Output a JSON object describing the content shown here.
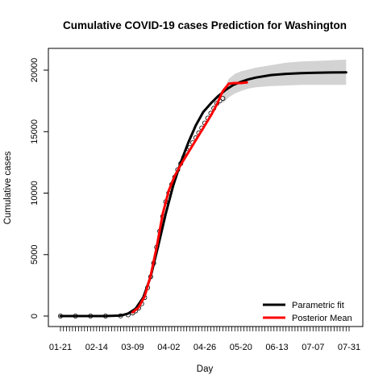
{
  "chart_data": {
    "type": "line",
    "title": "Cumulative COVID-19 cases Prediction for Washington",
    "xlabel": "Day",
    "ylabel": "Cumulative cases",
    "x_tick_labels": [
      "01-21",
      "02-14",
      "03-09",
      "04-02",
      "04-26",
      "05-20",
      "06-13",
      "07-07",
      "07-31"
    ],
    "y_ticks": [
      0,
      5000,
      10000,
      15000,
      20000
    ],
    "x_range_days": [
      0,
      192
    ],
    "ylim": [
      -1000,
      21000
    ],
    "legend": {
      "position": "bottom-right",
      "entries": [
        {
          "label": "Parametric fit",
          "color": "#000000"
        },
        {
          "label": "Posterior Mean",
          "color": "#ff0000"
        }
      ]
    },
    "observed_points": {
      "marker": "open-circle",
      "day_range": [
        0,
        108
      ],
      "x": [
        0,
        10,
        20,
        30,
        40,
        45,
        48,
        50,
        52,
        54,
        56,
        58,
        60,
        62,
        64,
        66,
        68,
        70,
        72,
        74,
        76,
        78,
        80,
        82,
        84,
        86,
        88,
        90,
        92,
        94,
        96,
        98,
        100,
        102,
        104,
        106,
        108
      ],
      "y": [
        0,
        0,
        0,
        0,
        10,
        100,
        250,
        420,
        650,
        1000,
        1500,
        2300,
        3200,
        4300,
        5600,
        6900,
        8100,
        9300,
        10000,
        10700,
        11300,
        11900,
        12400,
        12900,
        13300,
        13700,
        14100,
        14500,
        14900,
        15300,
        15700,
        16100,
        16500,
        16900,
        17300,
        17500,
        17700
      ]
    },
    "series": [
      {
        "name": "Parametric fit",
        "color": "#000000",
        "x": [
          0,
          30,
          40,
          45,
          50,
          55,
          60,
          65,
          70,
          75,
          80,
          85,
          90,
          95,
          100,
          105,
          110,
          115,
          120,
          125,
          130,
          140,
          150,
          160,
          170,
          180,
          190
        ],
        "y": [
          0,
          0,
          40,
          200,
          600,
          1500,
          3200,
          5700,
          8300,
          10600,
          12500,
          14100,
          15500,
          16600,
          17300,
          17900,
          18400,
          18800,
          19050,
          19250,
          19400,
          19600,
          19700,
          19760,
          19790,
          19810,
          19820
        ]
      },
      {
        "name": "Posterior Mean",
        "color": "#ff0000",
        "x": [
          48,
          52,
          56,
          60,
          64,
          68,
          72,
          76,
          80,
          84,
          88,
          92,
          96,
          100,
          104,
          108,
          112,
          116,
          120,
          124
        ],
        "y": [
          300,
          700,
          1600,
          3300,
          5600,
          8300,
          10200,
          11400,
          12300,
          13100,
          13900,
          14700,
          15500,
          16300,
          17200,
          18300,
          18900,
          18950,
          18950,
          19000
        ]
      }
    ],
    "confidence_band": {
      "color": "#d3d3d3",
      "x": [
        108,
        112,
        116,
        120,
        125,
        130,
        140,
        150,
        160,
        170,
        180,
        190
      ],
      "lower": [
        17300,
        17800,
        18100,
        18300,
        18500,
        18600,
        18700,
        18750,
        18800,
        18800,
        18800,
        18800
      ],
      "upper": [
        18200,
        19300,
        19700,
        19900,
        20050,
        20200,
        20400,
        20600,
        20700,
        20750,
        20800,
        20850
      ]
    }
  }
}
